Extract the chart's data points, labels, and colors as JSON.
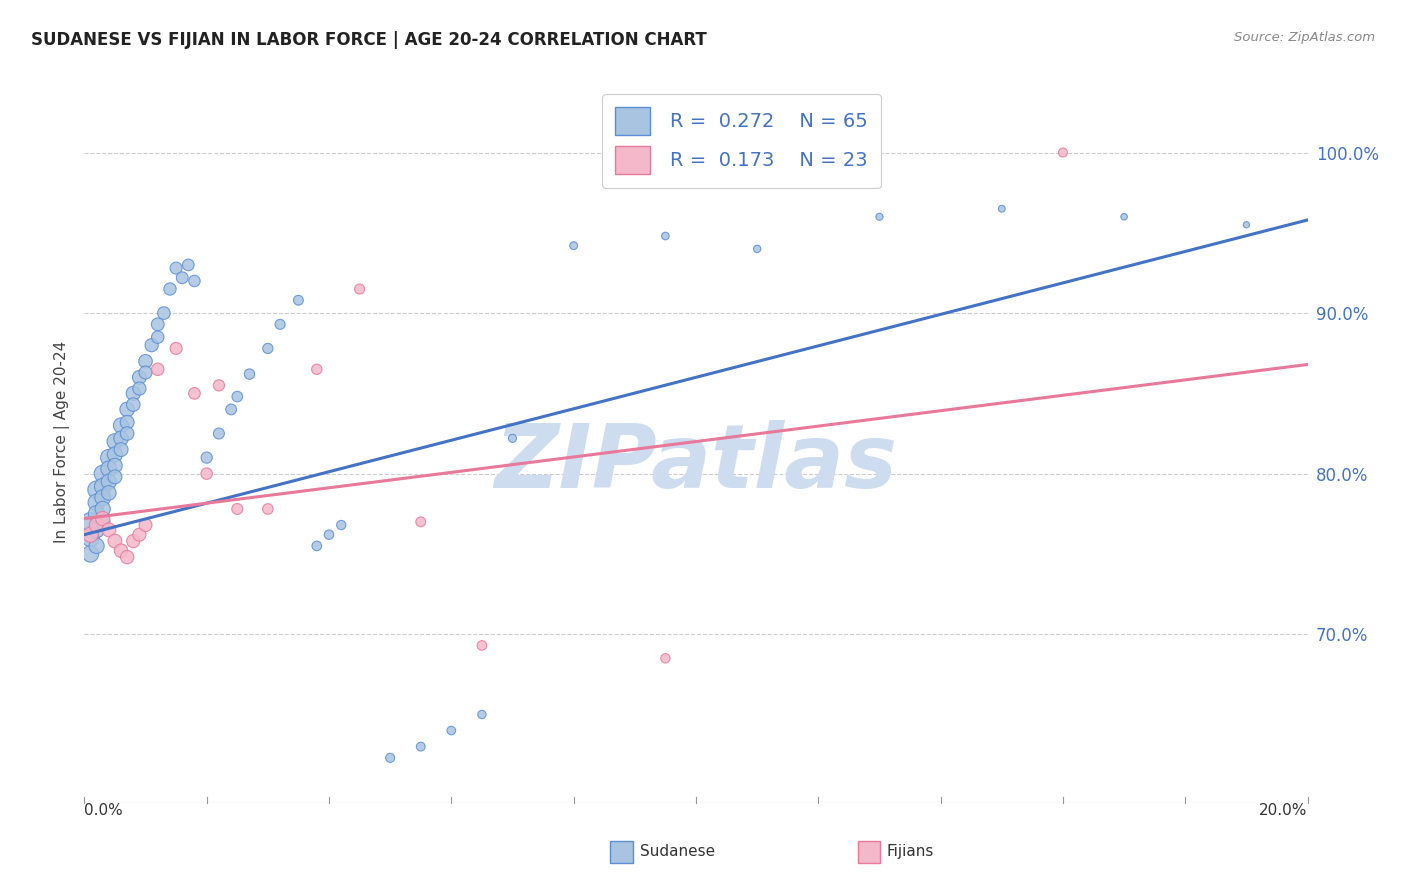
{
  "title": "SUDANESE VS FIJIAN IN LABOR FORCE | AGE 20-24 CORRELATION CHART",
  "source": "Source: ZipAtlas.com",
  "ylabel": "In Labor Force | Age 20-24",
  "ytick_labels": [
    "70.0%",
    "80.0%",
    "90.0%",
    "100.0%"
  ],
  "ytick_vals": [
    0.7,
    0.8,
    0.9,
    1.0
  ],
  "xlim": [
    0.0,
    0.2
  ],
  "ylim": [
    0.595,
    1.045
  ],
  "legend_r1": "0.272",
  "legend_n1": "65",
  "legend_r2": "0.173",
  "legend_n2": "23",
  "blue_fill": "#a8c4e0",
  "pink_fill": "#f4b8cb",
  "blue_edge": "#5b8ed6",
  "pink_edge": "#e8799a",
  "blue_line": "#4472c4",
  "pink_line": "#e8799a",
  "text_blue": "#4472c4",
  "grid_color": "#cccccc",
  "watermark_color": "#cddcee",
  "sudanese_x": [
    0.001,
    0.001,
    0.001,
    0.002,
    0.002,
    0.002,
    0.002,
    0.002,
    0.003,
    0.003,
    0.003,
    0.003,
    0.003,
    0.004,
    0.004,
    0.004,
    0.004,
    0.005,
    0.005,
    0.005,
    0.005,
    0.006,
    0.006,
    0.006,
    0.007,
    0.007,
    0.007,
    0.008,
    0.008,
    0.009,
    0.009,
    0.01,
    0.01,
    0.011,
    0.012,
    0.012,
    0.013,
    0.014,
    0.015,
    0.016,
    0.017,
    0.018,
    0.02,
    0.022,
    0.024,
    0.025,
    0.027,
    0.03,
    0.032,
    0.035,
    0.038,
    0.04,
    0.042,
    0.05,
    0.055,
    0.06,
    0.065,
    0.07,
    0.08,
    0.095,
    0.11,
    0.13,
    0.15,
    0.17,
    0.19
  ],
  "sudanese_y": [
    0.77,
    0.76,
    0.75,
    0.79,
    0.782,
    0.775,
    0.765,
    0.755,
    0.8,
    0.792,
    0.785,
    0.778,
    0.77,
    0.81,
    0.803,
    0.795,
    0.788,
    0.82,
    0.812,
    0.805,
    0.798,
    0.83,
    0.822,
    0.815,
    0.84,
    0.832,
    0.825,
    0.85,
    0.843,
    0.86,
    0.853,
    0.87,
    0.863,
    0.88,
    0.893,
    0.885,
    0.9,
    0.915,
    0.928,
    0.922,
    0.93,
    0.92,
    0.81,
    0.825,
    0.84,
    0.848,
    0.862,
    0.878,
    0.893,
    0.908,
    0.755,
    0.762,
    0.768,
    0.623,
    0.63,
    0.64,
    0.65,
    0.822,
    0.942,
    0.948,
    0.94,
    0.96,
    0.965,
    0.96,
    0.955
  ],
  "fijian_x": [
    0.001,
    0.002,
    0.003,
    0.004,
    0.005,
    0.006,
    0.007,
    0.008,
    0.009,
    0.01,
    0.012,
    0.015,
    0.018,
    0.02,
    0.022,
    0.025,
    0.03,
    0.038,
    0.045,
    0.055,
    0.065,
    0.095,
    0.16
  ],
  "fijian_y": [
    0.762,
    0.768,
    0.772,
    0.765,
    0.758,
    0.752,
    0.748,
    0.758,
    0.762,
    0.768,
    0.865,
    0.878,
    0.85,
    0.8,
    0.855,
    0.778,
    0.778,
    0.865,
    0.915,
    0.77,
    0.693,
    0.685,
    1.0
  ],
  "sudanese_sizes": [
    180,
    160,
    140,
    160,
    150,
    140,
    130,
    120,
    150,
    140,
    130,
    120,
    110,
    140,
    130,
    120,
    110,
    130,
    120,
    110,
    100,
    120,
    110,
    100,
    110,
    100,
    95,
    105,
    95,
    100,
    90,
    95,
    88,
    90,
    85,
    80,
    82,
    78,
    75,
    72,
    70,
    68,
    65,
    62,
    60,
    58,
    56,
    54,
    52,
    50,
    48,
    46,
    44,
    42,
    40,
    38,
    36,
    34,
    32,
    30,
    28,
    26,
    24,
    22,
    20
  ],
  "fijian_sizes": [
    120,
    110,
    105,
    100,
    98,
    95,
    92,
    90,
    88,
    85,
    80,
    75,
    70,
    68,
    65,
    62,
    58,
    55,
    52,
    50,
    48,
    45,
    42
  ],
  "blue_trend_x0": 0.0,
  "blue_trend_y0": 0.762,
  "blue_trend_x1": 0.2,
  "blue_trend_y1": 0.958,
  "pink_trend_x0": 0.0,
  "pink_trend_y0": 0.772,
  "pink_trend_x1": 0.2,
  "pink_trend_y1": 0.868
}
